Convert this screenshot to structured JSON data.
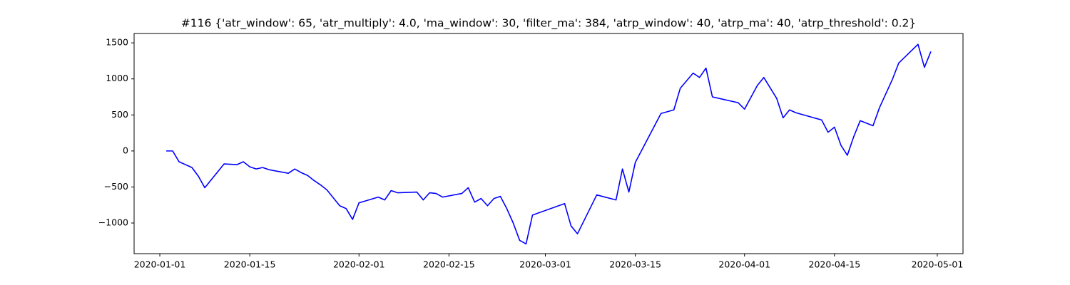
{
  "chart_data": {
    "type": "line",
    "title": "#116 {'atr_window': 65, 'atr_multiply': 4.0, 'ma_window': 30, 'filter_ma': 384, 'atrp_window': 40, 'atrp_ma': 40, 'atrp_threshold': 0.2}",
    "color": "#0000ff",
    "x": [
      "2020-01-02",
      "2020-01-03",
      "2020-01-04",
      "2020-01-06",
      "2020-01-07",
      "2020-01-08",
      "2020-01-11",
      "2020-01-13",
      "2020-01-14",
      "2020-01-15",
      "2020-01-16",
      "2020-01-17",
      "2020-01-18",
      "2020-01-21",
      "2020-01-22",
      "2020-01-23",
      "2020-01-24",
      "2020-01-25",
      "2020-01-26",
      "2020-01-27",
      "2020-01-29",
      "2020-01-30",
      "2020-01-31",
      "2020-02-01",
      "2020-02-04",
      "2020-02-05",
      "2020-02-06",
      "2020-02-07",
      "2020-02-10",
      "2020-02-11",
      "2020-02-12",
      "2020-02-13",
      "2020-02-14",
      "2020-02-17",
      "2020-02-18",
      "2020-02-19",
      "2020-02-20",
      "2020-02-21",
      "2020-02-22",
      "2020-02-23",
      "2020-02-24",
      "2020-02-25",
      "2020-02-26",
      "2020-02-27",
      "2020-02-28",
      "2020-03-04",
      "2020-03-05",
      "2020-03-06",
      "2020-03-09",
      "2020-03-12",
      "2020-03-13",
      "2020-03-14",
      "2020-03-15",
      "2020-03-19",
      "2020-03-21",
      "2020-03-22",
      "2020-03-24",
      "2020-03-25",
      "2020-03-26",
      "2020-03-27",
      "2020-03-31",
      "2020-04-01",
      "2020-04-03",
      "2020-04-04",
      "2020-04-06",
      "2020-04-07",
      "2020-04-08",
      "2020-04-09",
      "2020-04-13",
      "2020-04-14",
      "2020-04-15",
      "2020-04-16",
      "2020-04-17",
      "2020-04-18",
      "2020-04-19",
      "2020-04-21",
      "2020-04-22",
      "2020-04-24",
      "2020-04-25",
      "2020-04-28",
      "2020-04-29",
      "2020-04-30"
    ],
    "values": [
      0,
      0,
      -150,
      -230,
      -350,
      -510,
      -180,
      -190,
      -150,
      -220,
      -250,
      -230,
      -260,
      -310,
      -250,
      -300,
      -340,
      -410,
      -470,
      -540,
      -760,
      -800,
      -950,
      -720,
      -640,
      -680,
      -550,
      -580,
      -570,
      -680,
      -580,
      -590,
      -640,
      -590,
      -510,
      -710,
      -660,
      -760,
      -660,
      -630,
      -800,
      -1000,
      -1240,
      -1290,
      -890,
      -730,
      -1040,
      -1150,
      -610,
      -680,
      -250,
      -570,
      -160,
      520,
      570,
      870,
      1080,
      1020,
      1150,
      750,
      670,
      580,
      910,
      1020,
      730,
      460,
      570,
      530,
      430,
      260,
      330,
      80,
      -60,
      200,
      420,
      350,
      600,
      990,
      1220,
      1480,
      1160,
      1380
    ],
    "xlim": [
      "2019-12-28",
      "2020-05-05"
    ],
    "xticks": [
      "2020-01-01",
      "2020-01-15",
      "2020-02-01",
      "2020-02-15",
      "2020-03-01",
      "2020-03-15",
      "2020-04-01",
      "2020-04-15",
      "2020-05-01"
    ],
    "ylim": [
      -1425,
      1630
    ],
    "yticks": [
      {
        "value": -1000,
        "label": "−1000"
      },
      {
        "value": -500,
        "label": "−500"
      },
      0,
      500,
      1000,
      1500
    ]
  }
}
